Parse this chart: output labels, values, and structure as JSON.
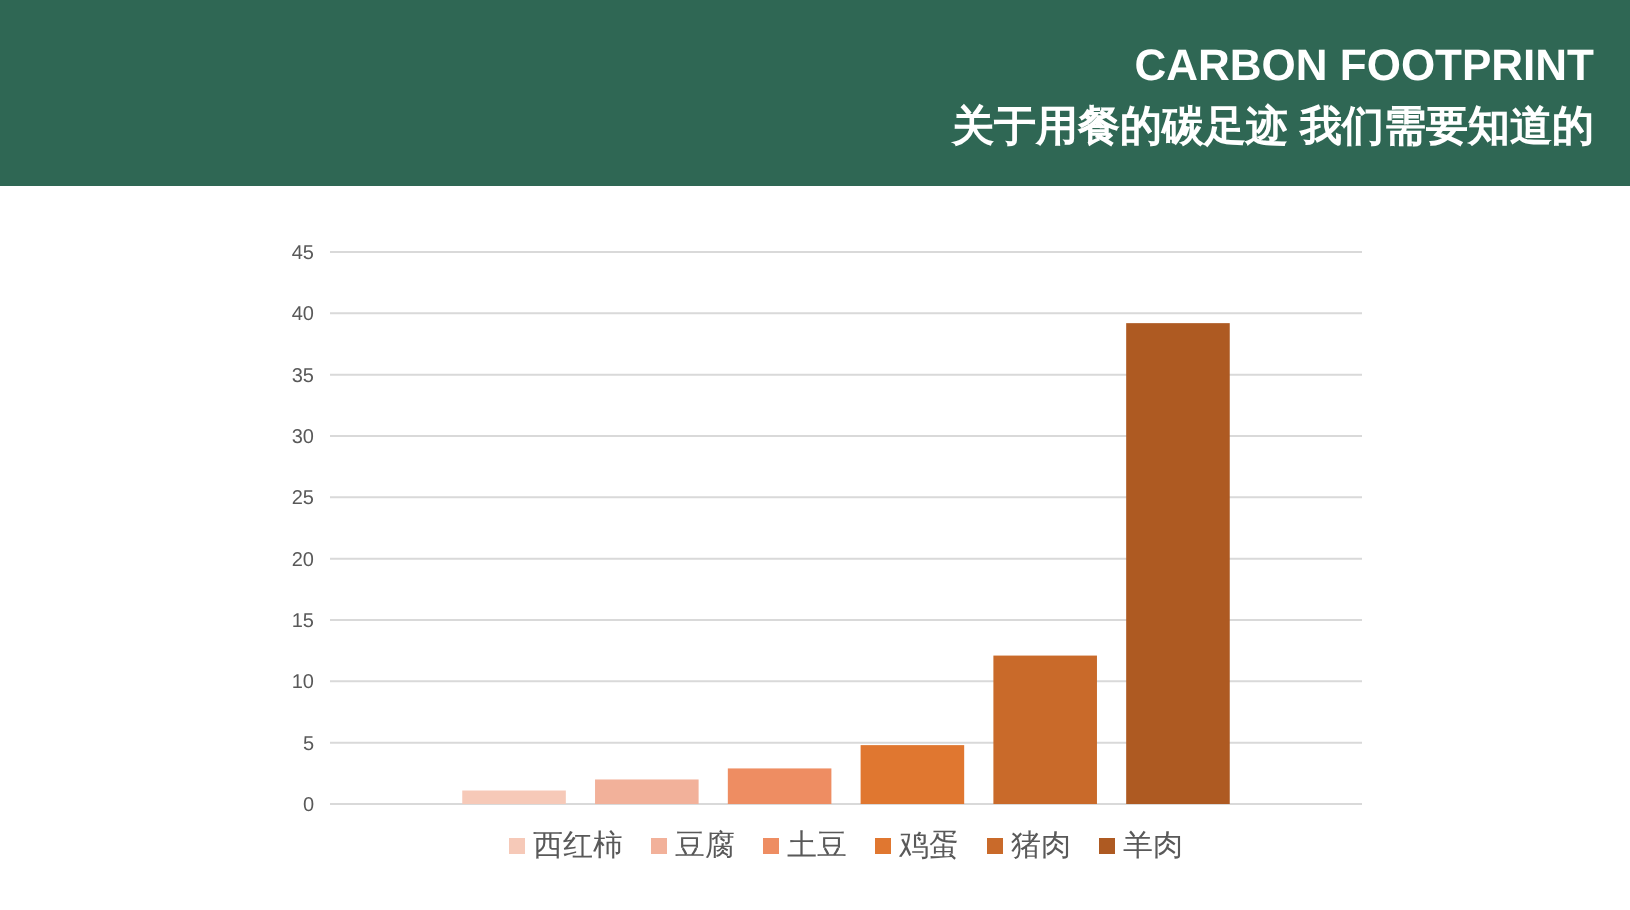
{
  "chart_data": {
    "type": "bar",
    "title": "CARBON FOOTPRINT",
    "subtitle": "关于用餐的碳足迹 我们需要知道的",
    "categories": [
      null
    ],
    "series": [
      {
        "name": "西红柿",
        "color": "#f6c9b8",
        "values": [
          1.1
        ]
      },
      {
        "name": "豆腐",
        "color": "#f2b19a",
        "values": [
          2.0
        ]
      },
      {
        "name": "土豆",
        "color": "#ee8d62",
        "values": [
          2.9
        ]
      },
      {
        "name": "鸡蛋",
        "color": "#e07730",
        "values": [
          4.8
        ]
      },
      {
        "name": "猪肉",
        "color": "#c96a2a",
        "values": [
          12.1
        ]
      },
      {
        "name": "羊肉",
        "color": "#ae5a22",
        "values": [
          39.2
        ]
      }
    ],
    "ylim": [
      0,
      45
    ],
    "yticks": [
      0,
      5,
      10,
      15,
      20,
      25,
      30,
      35,
      40,
      45
    ],
    "grid": "y",
    "legend": "bottom"
  }
}
